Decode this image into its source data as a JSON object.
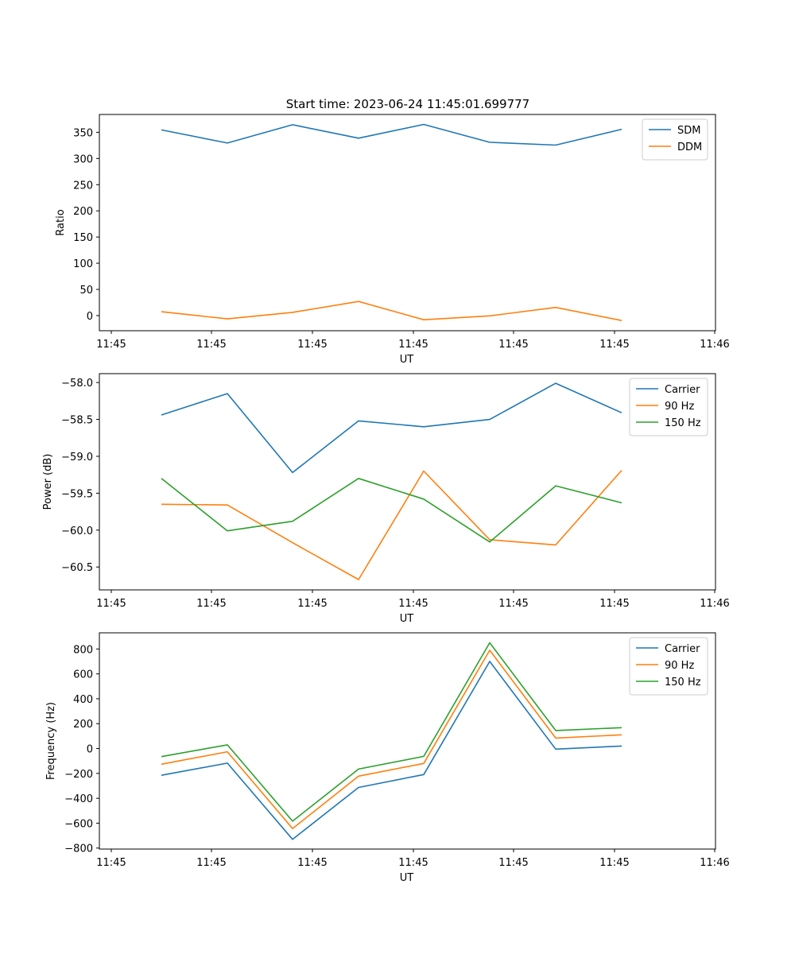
{
  "title": "Start time: 2023-06-24 11:45:01.699777",
  "chart_data": [
    {
      "type": "line",
      "xlabel": "UT",
      "ylabel": "Ratio",
      "xtick_labels": [
        "11:45",
        "11:45",
        "11:45",
        "11:45",
        "11:45",
        "11:45",
        "11:46"
      ],
      "yticks": [
        0,
        50,
        100,
        150,
        200,
        250,
        300,
        350
      ],
      "ytick_labels": [
        "0",
        "50",
        "100",
        "150",
        "200",
        "250",
        "300",
        "350"
      ],
      "ylim": [
        -28.9,
        384.0
      ],
      "grid": false,
      "legend": "upper right",
      "x_index": [
        0,
        1,
        2,
        3,
        4,
        5,
        6,
        7
      ],
      "series": [
        {
          "name": "SDM",
          "color": "#1f77b4",
          "values": [
            354.5,
            329.5,
            364.4,
            338.7,
            365.1,
            330.8,
            325.5,
            355.8
          ]
        },
        {
          "name": "DDM",
          "color": "#ff7f0e",
          "values": [
            7.4,
            -6.3,
            6.2,
            26.9,
            -8.0,
            -0.5,
            15.6,
            -9.4
          ]
        }
      ]
    },
    {
      "type": "line",
      "xlabel": "UT",
      "ylabel": "Power (dB)",
      "xtick_labels": [
        "11:45",
        "11:45",
        "11:45",
        "11:45",
        "11:45",
        "11:45",
        "11:46"
      ],
      "yticks": [
        -60.5,
        -60.0,
        -59.5,
        -59.0,
        -58.5,
        -58.0
      ],
      "ytick_labels": [
        "−60.5",
        "−60.0",
        "−59.5",
        "−59.0",
        "−58.5",
        "−58.0"
      ],
      "ylim": [
        -60.81,
        -57.88
      ],
      "grid": false,
      "legend": "upper right",
      "x_index": [
        0,
        1,
        2,
        3,
        4,
        5,
        6,
        7
      ],
      "series": [
        {
          "name": "Carrier",
          "color": "#1f77b4",
          "values": [
            -58.44,
            -58.15,
            -59.22,
            -58.52,
            -58.6,
            -58.5,
            -58.01,
            -58.41
          ]
        },
        {
          "name": "90 Hz",
          "color": "#ff7f0e",
          "values": [
            -59.65,
            -59.66,
            -60.17,
            -60.67,
            -59.2,
            -60.13,
            -60.2,
            -59.19
          ]
        },
        {
          "name": "150 Hz",
          "color": "#2ca02c",
          "values": [
            -59.3,
            -60.01,
            -59.88,
            -59.3,
            -59.58,
            -60.16,
            -59.4,
            -59.63
          ]
        }
      ]
    },
    {
      "type": "line",
      "xlabel": "UT",
      "ylabel": "Frequency (Hz)",
      "xtick_labels": [
        "11:45",
        "11:45",
        "11:45",
        "11:45",
        "11:45",
        "11:45",
        "11:46"
      ],
      "yticks": [
        -800,
        -600,
        -400,
        -200,
        0,
        200,
        400,
        600,
        800
      ],
      "ytick_labels": [
        "−800",
        "−600",
        "−400",
        "−200",
        "0",
        "200",
        "400",
        "600",
        "800"
      ],
      "ylim": [
        -808,
        930
      ],
      "grid": false,
      "legend": "upper right",
      "x_index": [
        0,
        1,
        2,
        3,
        4,
        5,
        6,
        7
      ],
      "series": [
        {
          "name": "Carrier",
          "color": "#1f77b4",
          "values": [
            -215,
            -117,
            -730,
            -313,
            -209,
            700,
            -5,
            20
          ]
        },
        {
          "name": "90 Hz",
          "color": "#ff7f0e",
          "values": [
            -126,
            -26,
            -643,
            -222,
            -120,
            790,
            84,
            110
          ]
        },
        {
          "name": "150 Hz",
          "color": "#2ca02c",
          "values": [
            -65,
            30,
            -584,
            -165,
            -63,
            850,
            145,
            168
          ]
        }
      ]
    }
  ]
}
